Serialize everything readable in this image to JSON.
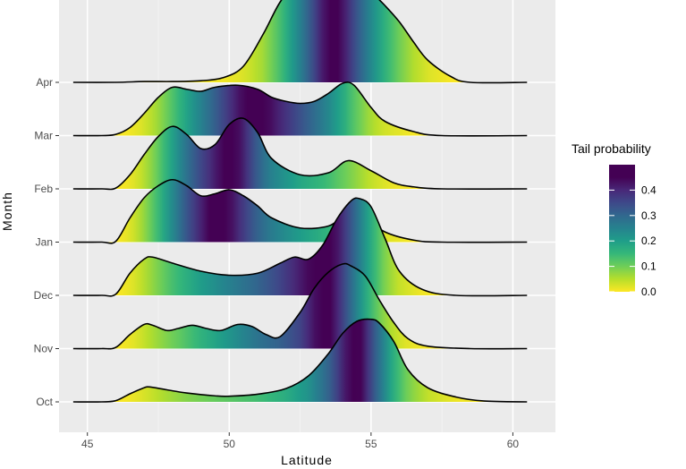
{
  "chart_data": {
    "type": "area",
    "subtype": "ridgeline-density",
    "xlabel": "Latitude",
    "ylabel": "Month",
    "xlim": [
      44,
      61.5
    ],
    "x_ticks": [
      45,
      50,
      55,
      60
    ],
    "x_tick_labels": [
      "45",
      "50",
      "55",
      "60"
    ],
    "categories": [
      "Oct",
      "Nov",
      "Dec",
      "Jan",
      "Feb",
      "Mar",
      "Apr"
    ],
    "grid": true,
    "fill_encoding": "Tail probability",
    "legend": {
      "title": "Tail probability",
      "position": "right",
      "ticks": [
        0.0,
        0.1,
        0.2,
        0.3,
        0.4
      ],
      "tick_labels": [
        "0.0",
        "0.1",
        "0.2",
        "0.3",
        "0.4"
      ],
      "range": [
        0,
        0.5
      ]
    },
    "series": [
      {
        "name": "Oct",
        "x": [
          44.5,
          45.5,
          46.0,
          46.5,
          47.0,
          47.2,
          47.8,
          48.5,
          49.5,
          50.0,
          51.0,
          52.0,
          52.8,
          53.5,
          54.0,
          54.5,
          55.0,
          55.3,
          55.8,
          56.3,
          57.0,
          58.0,
          59.0,
          60.5
        ],
        "density": [
          0.0,
          0.0,
          0.003,
          0.02,
          0.035,
          0.037,
          0.03,
          0.022,
          0.015,
          0.014,
          0.019,
          0.033,
          0.065,
          0.12,
          0.17,
          0.2,
          0.205,
          0.195,
          0.15,
          0.08,
          0.035,
          0.012,
          0.002,
          0.0
        ]
      },
      {
        "name": "Nov",
        "x": [
          44.5,
          45.5,
          46.0,
          46.5,
          47.0,
          47.3,
          47.8,
          48.2,
          48.7,
          49.2,
          49.7,
          50.3,
          50.8,
          51.3,
          51.8,
          52.5,
          53.0,
          53.5,
          54.0,
          54.3,
          54.8,
          55.3,
          55.8,
          56.3,
          57.0,
          58.5,
          60.5
        ],
        "density": [
          0.0,
          0.0,
          0.003,
          0.035,
          0.06,
          0.058,
          0.045,
          0.05,
          0.058,
          0.05,
          0.045,
          0.06,
          0.055,
          0.035,
          0.03,
          0.09,
          0.15,
          0.19,
          0.21,
          0.205,
          0.18,
          0.12,
          0.065,
          0.025,
          0.006,
          0.0,
          0.0
        ]
      },
      {
        "name": "Dec",
        "x": [
          44.5,
          45.5,
          46.0,
          46.5,
          47.0,
          47.3,
          48.0,
          49.0,
          50.0,
          51.0,
          51.8,
          52.3,
          52.8,
          53.3,
          53.8,
          54.3,
          54.6,
          55.0,
          55.5,
          56.0,
          56.8,
          58.0,
          60.5
        ],
        "density": [
          0.0,
          0.0,
          0.003,
          0.055,
          0.09,
          0.095,
          0.08,
          0.06,
          0.05,
          0.055,
          0.08,
          0.095,
          0.09,
          0.125,
          0.19,
          0.235,
          0.24,
          0.22,
          0.14,
          0.06,
          0.015,
          0.0,
          0.0
        ]
      },
      {
        "name": "Jan",
        "x": [
          44.5,
          45.5,
          46.0,
          46.5,
          47.0,
          47.5,
          48.0,
          48.5,
          49.0,
          49.5,
          50.0,
          50.5,
          51.0,
          51.5,
          52.5,
          53.5,
          54.0,
          54.4,
          54.8,
          55.5,
          56.5,
          57.5,
          60.5
        ],
        "density": [
          0.0,
          0.0,
          0.002,
          0.06,
          0.11,
          0.14,
          0.155,
          0.14,
          0.115,
          0.12,
          0.13,
          0.115,
          0.09,
          0.06,
          0.035,
          0.04,
          0.065,
          0.075,
          0.06,
          0.025,
          0.005,
          0.0,
          0.0
        ]
      },
      {
        "name": "Feb",
        "x": [
          44.5,
          45.5,
          46.0,
          46.5,
          47.0,
          47.5,
          48.0,
          48.5,
          49.0,
          49.5,
          50.0,
          50.5,
          51.0,
          51.5,
          52.5,
          53.5,
          54.2,
          55.0,
          55.8,
          56.5,
          57.5,
          60.5
        ],
        "density": [
          0.0,
          0.0,
          0.002,
          0.035,
          0.085,
          0.13,
          0.155,
          0.135,
          0.1,
          0.11,
          0.16,
          0.175,
          0.14,
          0.075,
          0.035,
          0.04,
          0.07,
          0.045,
          0.015,
          0.005,
          0.0,
          0.0
        ]
      },
      {
        "name": "Mar",
        "x": [
          44.5,
          45.5,
          46.0,
          46.5,
          47.0,
          47.5,
          48.0,
          48.5,
          49.0,
          49.5,
          50.3,
          51.0,
          51.5,
          52.0,
          52.5,
          53.0,
          53.5,
          54.0,
          54.4,
          55.0,
          55.5,
          56.5,
          57.5,
          60.5
        ],
        "density": [
          0.0,
          0.0,
          0.003,
          0.02,
          0.055,
          0.095,
          0.12,
          0.115,
          0.11,
          0.12,
          0.125,
          0.115,
          0.095,
          0.085,
          0.08,
          0.085,
          0.105,
          0.13,
          0.125,
          0.07,
          0.035,
          0.01,
          0.0,
          0.0
        ]
      },
      {
        "name": "Apr",
        "x": [
          44.5,
          46.0,
          47.0,
          48.0,
          49.0,
          49.8,
          50.5,
          51.2,
          51.8,
          52.5,
          53.0,
          53.5,
          54.0,
          54.5,
          55.0,
          55.5,
          56.0,
          56.5,
          57.0,
          57.8,
          58.5,
          60.5
        ],
        "density": [
          0.0,
          0.0,
          0.002,
          0.002,
          0.004,
          0.012,
          0.04,
          0.12,
          0.2,
          0.26,
          0.285,
          0.3,
          0.29,
          0.26,
          0.225,
          0.19,
          0.15,
          0.1,
          0.055,
          0.015,
          0.0,
          0.0
        ]
      }
    ]
  }
}
